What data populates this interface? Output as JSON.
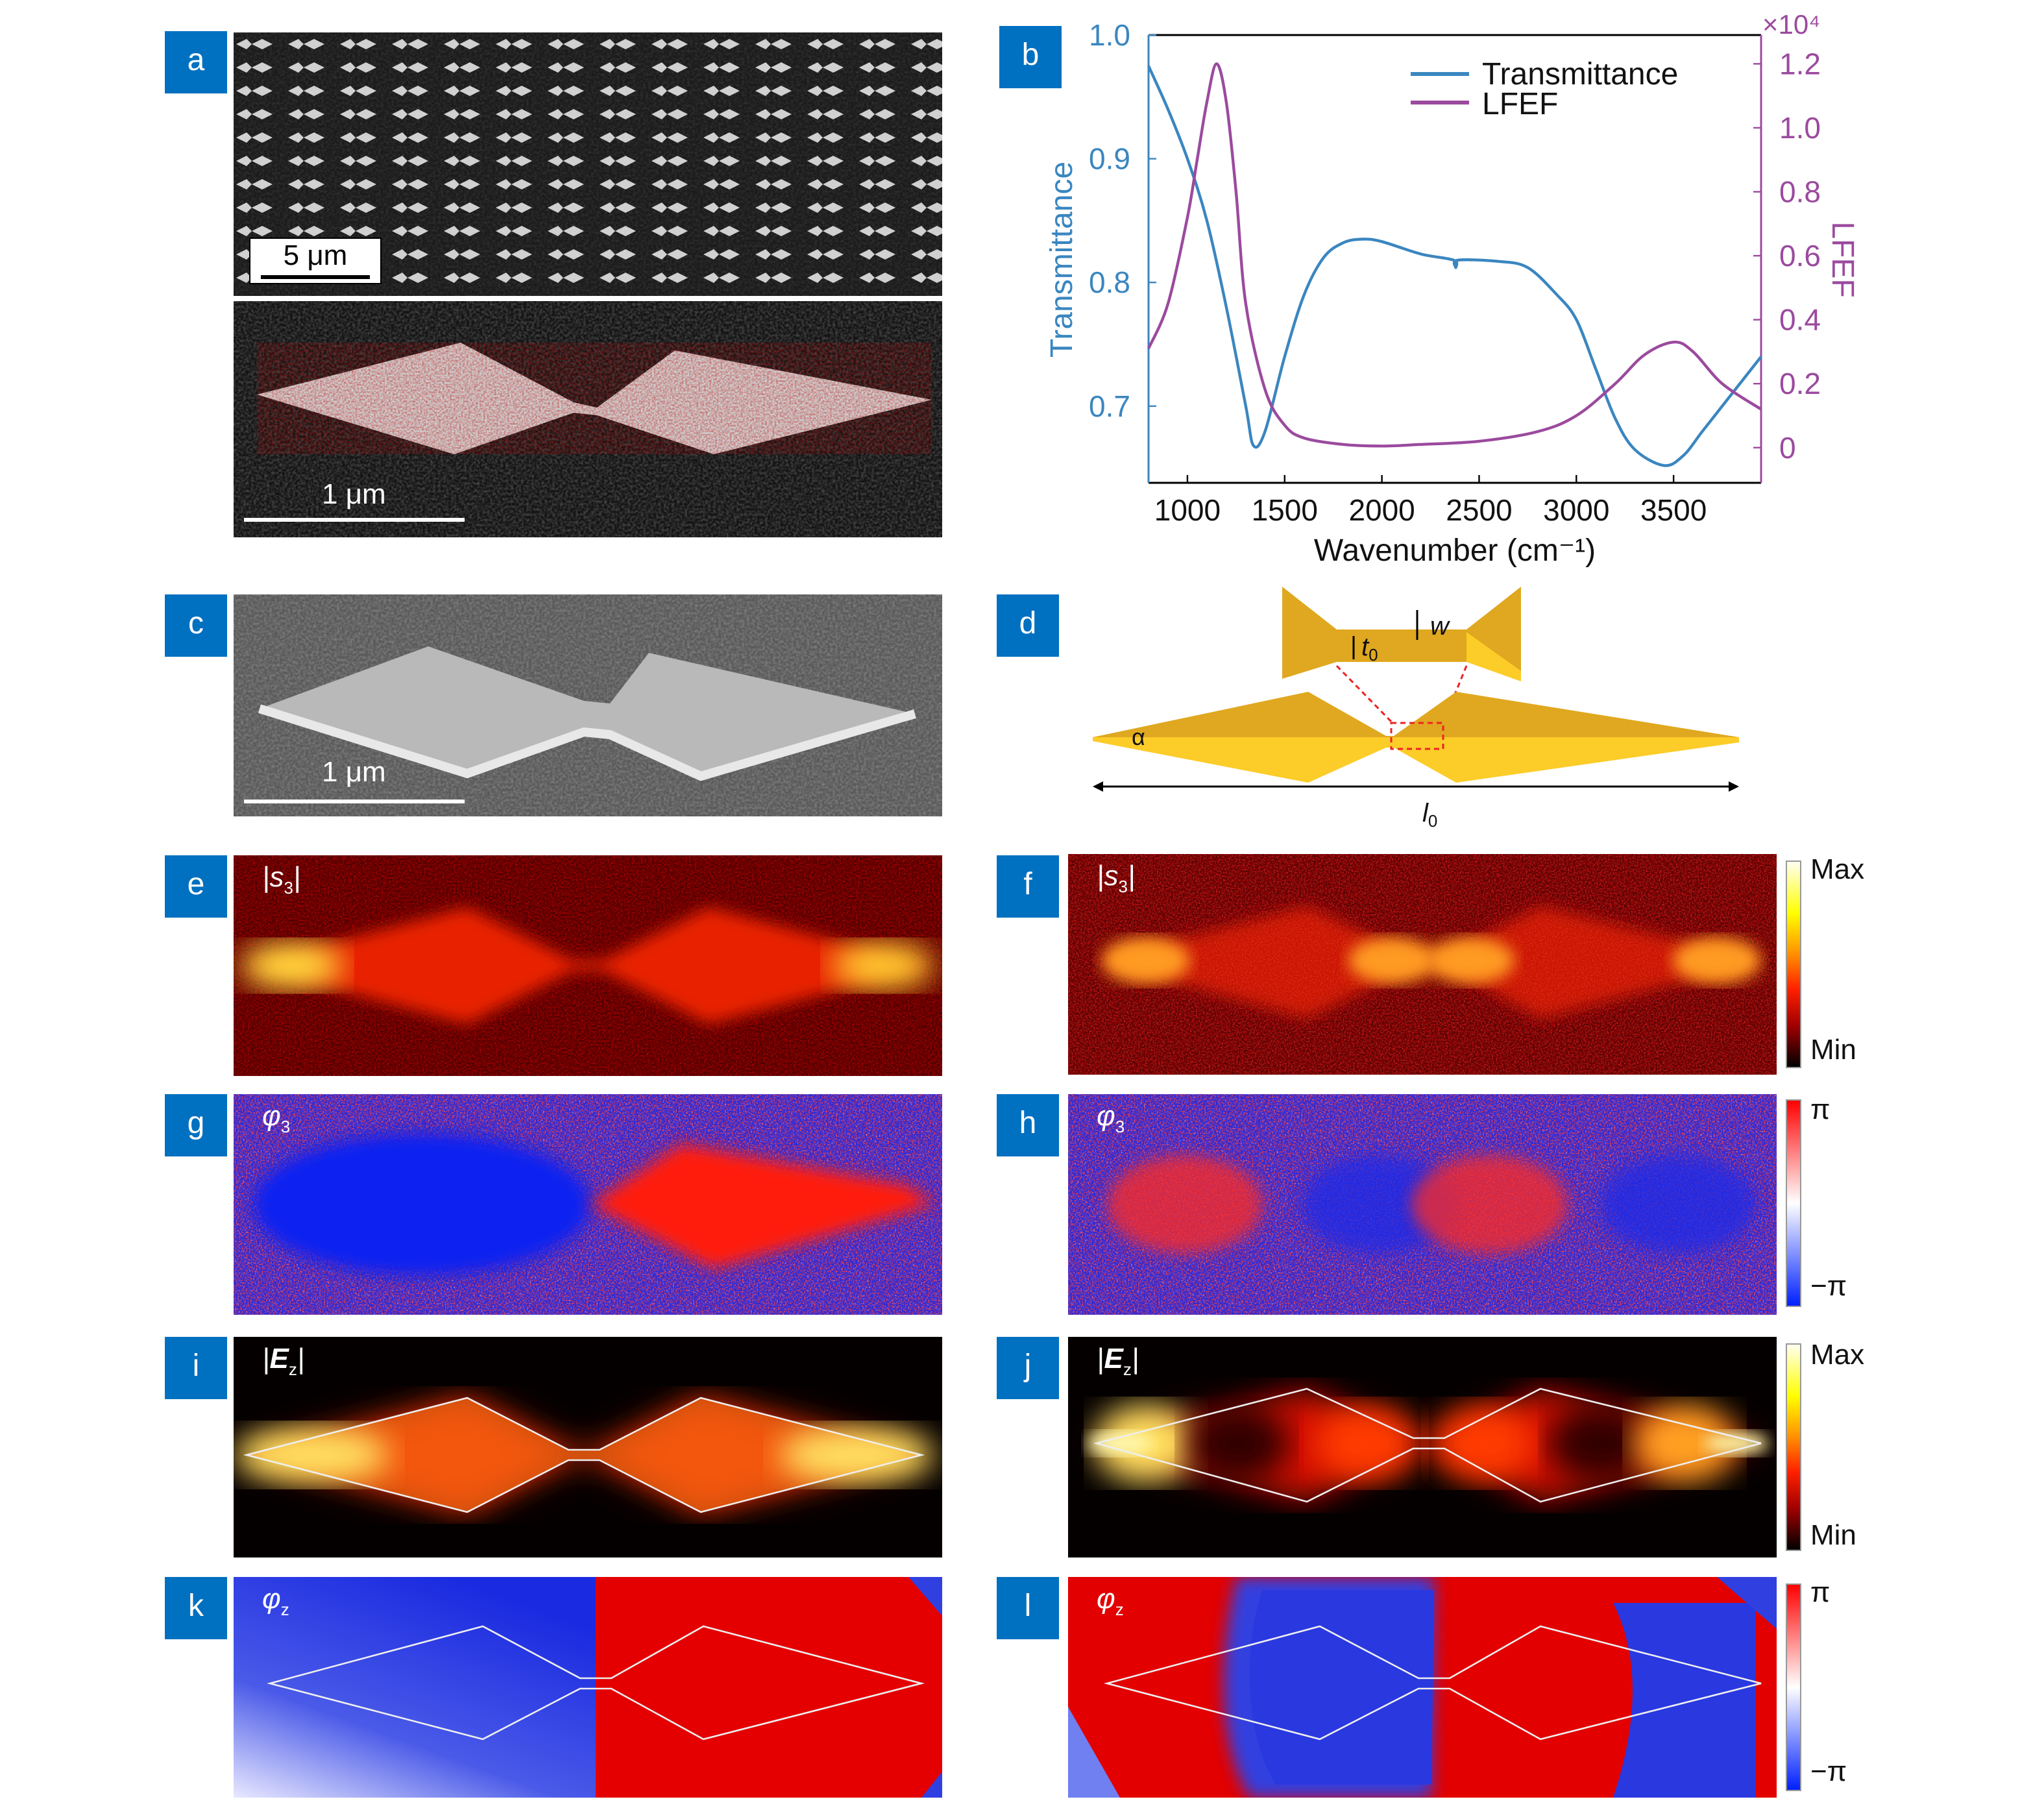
{
  "panels": {
    "a": {
      "label": "a",
      "scale_top": "5 μm",
      "scale_bottom": "1 μm"
    },
    "b": {
      "label": "b"
    },
    "c": {
      "label": "c",
      "scale": "1 μm"
    },
    "d": {
      "label": "d",
      "w": "w",
      "t0": "t",
      "t0_sub": "0",
      "alpha": "α",
      "l0": "l",
      "l0_sub": "0"
    },
    "e": {
      "label": "e",
      "title": "s",
      "title_sub": "3"
    },
    "f": {
      "label": "f",
      "title": "s",
      "title_sub": "3"
    },
    "g": {
      "label": "g",
      "title": "φ",
      "title_sub": "3"
    },
    "h": {
      "label": "h",
      "title": "φ",
      "title_sub": "3"
    },
    "i": {
      "label": "i",
      "title": "E",
      "title_sub": "z"
    },
    "j": {
      "label": "j",
      "title": "E",
      "title_sub": "z"
    },
    "k": {
      "label": "k",
      "title": "φ",
      "title_sub": "z"
    },
    "l": {
      "label": "l",
      "title": "φ",
      "title_sub": "z"
    }
  },
  "colorbars": {
    "amplitude": {
      "max": "Max",
      "min": "Min"
    },
    "phase": {
      "max": "π",
      "min": "−π"
    }
  },
  "colors": {
    "label_bg": "#0070c0",
    "transmittance": "#3a86c0",
    "lfef": "#9b4a9e"
  },
  "chart_data": {
    "type": "line",
    "xlabel": "Wavenumber (cm⁻¹)",
    "ylabel_left": "Transmittance",
    "ylabel_right": "LFEF",
    "right_multiplier": "×10⁴",
    "xlim": [
      800,
      3950
    ],
    "ylim_left": [
      0.638,
      1.0
    ],
    "ylim_right": [
      -0.11,
      1.29
    ],
    "xticks": [
      1000,
      1500,
      2000,
      2500,
      3000,
      3500
    ],
    "yticks_left": [
      "0.7",
      "0.8",
      "0.9",
      "1.0"
    ],
    "yticks_right": [
      "0",
      "0.2",
      "0.4",
      "0.6",
      "0.8",
      "1.0",
      "1.2"
    ],
    "legend_position": "top-right",
    "series": [
      {
        "name": "Transmittance",
        "axis": "left",
        "color": "#3a86c0",
        "x": [
          800,
          900,
          1000,
          1100,
          1200,
          1300,
          1340,
          1400,
          1500,
          1600,
          1700,
          1800,
          1900,
          2000,
          2200,
          2370,
          2380,
          2390,
          2600,
          2750,
          2900,
          3000,
          3100,
          3200,
          3300,
          3450,
          3550,
          3650,
          3800,
          3950
        ],
        "y": [
          0.975,
          0.94,
          0.9,
          0.85,
          0.78,
          0.7,
          0.668,
          0.68,
          0.74,
          0.79,
          0.82,
          0.832,
          0.835,
          0.833,
          0.823,
          0.818,
          0.812,
          0.818,
          0.817,
          0.812,
          0.79,
          0.77,
          0.73,
          0.69,
          0.665,
          0.652,
          0.66,
          0.68,
          0.71,
          0.74
        ]
      },
      {
        "name": "LFEF",
        "axis": "right",
        "color": "#9b4a9e",
        "x": [
          800,
          900,
          1000,
          1050,
          1100,
          1150,
          1200,
          1250,
          1300,
          1400,
          1500,
          1600,
          1800,
          2000,
          2200,
          2500,
          2800,
          3000,
          3200,
          3350,
          3500,
          3600,
          3750,
          3950
        ],
        "y": [
          0.31,
          0.45,
          0.72,
          0.9,
          1.08,
          1.2,
          1.08,
          0.8,
          0.45,
          0.18,
          0.07,
          0.03,
          0.01,
          0.005,
          0.01,
          0.02,
          0.05,
          0.1,
          0.2,
          0.29,
          0.33,
          0.3,
          0.2,
          0.12
        ]
      }
    ]
  }
}
